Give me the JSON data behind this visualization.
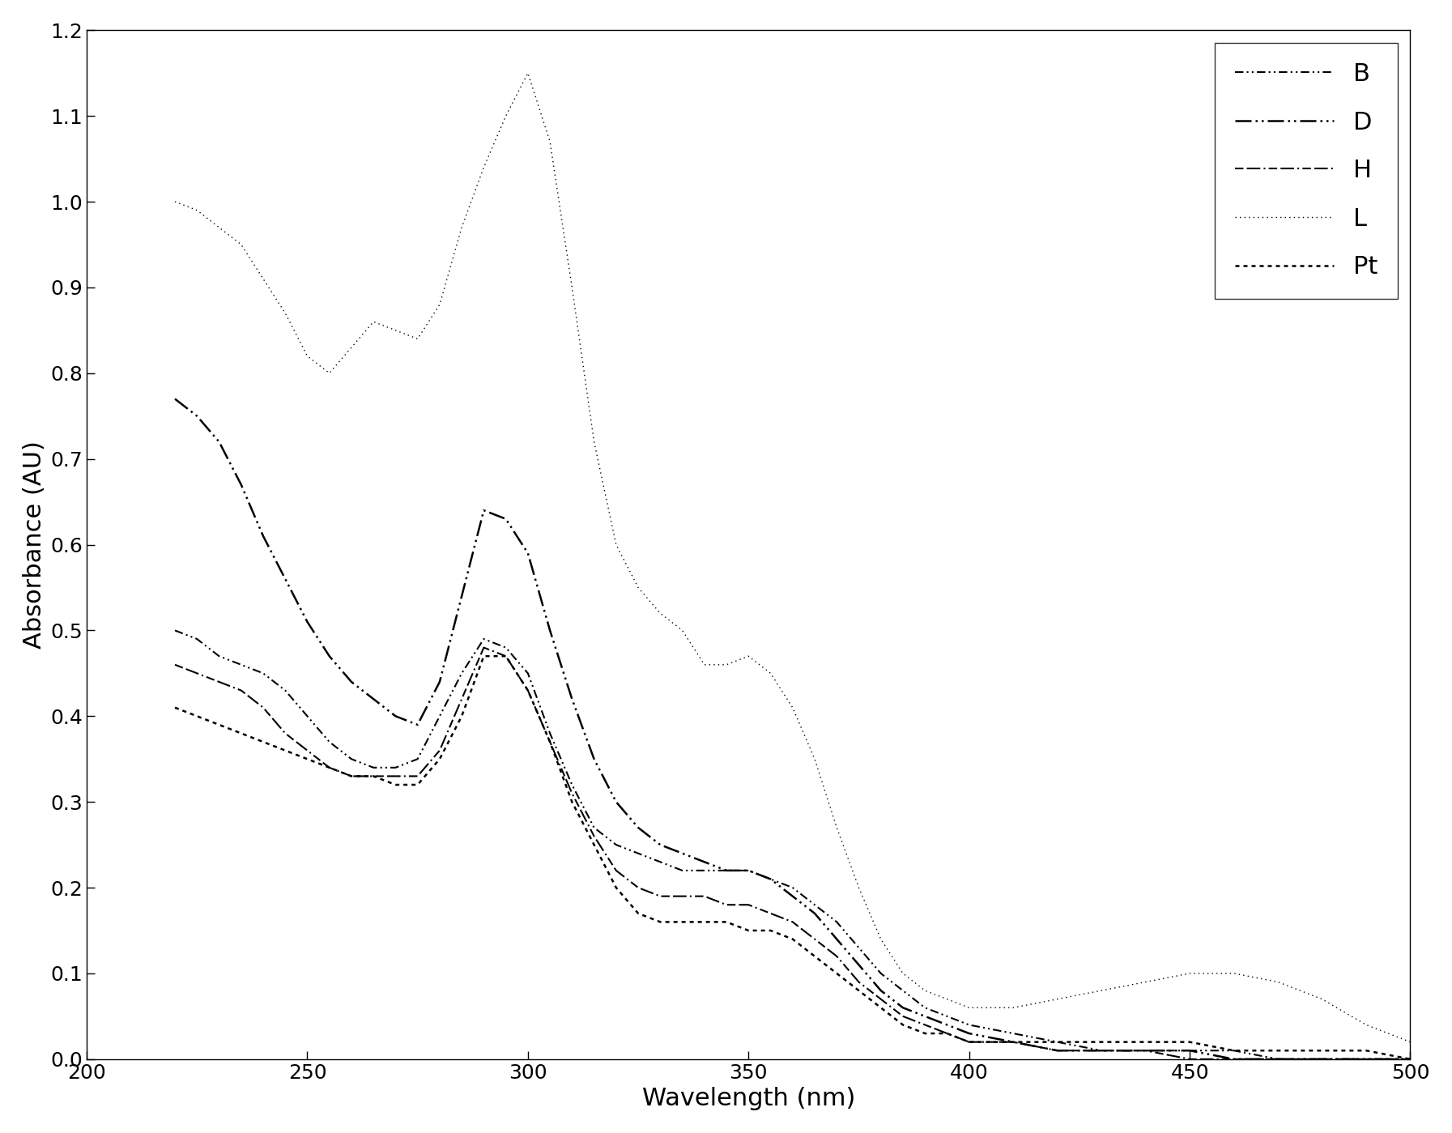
{
  "title": "",
  "xlabel": "Wavelength (nm)",
  "ylabel": "Absorbance (AU)",
  "xlim": [
    200,
    500
  ],
  "ylim": [
    0,
    1.2
  ],
  "xticks": [
    200,
    250,
    300,
    350,
    400,
    450,
    500
  ],
  "yticks": [
    0.0,
    0.1,
    0.2,
    0.3,
    0.4,
    0.5,
    0.6,
    0.7,
    0.8,
    0.9,
    1.0,
    1.1,
    1.2
  ],
  "background_color": "#ffffff",
  "line_color": "#000000",
  "series": [
    {
      "label": "B",
      "x": [
        220,
        225,
        230,
        235,
        240,
        245,
        250,
        255,
        260,
        265,
        270,
        275,
        280,
        285,
        290,
        295,
        300,
        305,
        310,
        315,
        320,
        325,
        330,
        335,
        340,
        345,
        350,
        355,
        360,
        365,
        370,
        375,
        380,
        385,
        390,
        395,
        400,
        410,
        420,
        430,
        440,
        450,
        460,
        470,
        480,
        490,
        500
      ],
      "y": [
        0.5,
        0.49,
        0.47,
        0.46,
        0.45,
        0.43,
        0.4,
        0.37,
        0.35,
        0.34,
        0.34,
        0.35,
        0.4,
        0.45,
        0.49,
        0.48,
        0.45,
        0.38,
        0.32,
        0.27,
        0.25,
        0.24,
        0.23,
        0.22,
        0.22,
        0.22,
        0.22,
        0.21,
        0.2,
        0.18,
        0.16,
        0.13,
        0.1,
        0.08,
        0.06,
        0.05,
        0.04,
        0.03,
        0.02,
        0.01,
        0.01,
        0.01,
        0.01,
        0.0,
        0.0,
        0.0,
        0.0
      ]
    },
    {
      "label": "D",
      "x": [
        220,
        225,
        230,
        235,
        240,
        245,
        250,
        255,
        260,
        265,
        270,
        275,
        280,
        285,
        290,
        295,
        300,
        305,
        310,
        315,
        320,
        325,
        330,
        335,
        340,
        345,
        350,
        355,
        360,
        365,
        370,
        375,
        380,
        385,
        390,
        395,
        400,
        410,
        420,
        430,
        440,
        450,
        460,
        470,
        480,
        490,
        500
      ],
      "y": [
        0.77,
        0.75,
        0.72,
        0.67,
        0.61,
        0.56,
        0.51,
        0.47,
        0.44,
        0.42,
        0.4,
        0.39,
        0.44,
        0.54,
        0.64,
        0.63,
        0.59,
        0.5,
        0.42,
        0.35,
        0.3,
        0.27,
        0.25,
        0.24,
        0.23,
        0.22,
        0.22,
        0.21,
        0.19,
        0.17,
        0.14,
        0.11,
        0.08,
        0.06,
        0.05,
        0.04,
        0.03,
        0.02,
        0.01,
        0.01,
        0.01,
        0.01,
        0.0,
        0.0,
        0.0,
        0.0,
        0.0
      ]
    },
    {
      "label": "H",
      "x": [
        220,
        225,
        230,
        235,
        240,
        245,
        250,
        255,
        260,
        265,
        270,
        275,
        280,
        285,
        290,
        295,
        300,
        305,
        310,
        315,
        320,
        325,
        330,
        335,
        340,
        345,
        350,
        355,
        360,
        365,
        370,
        375,
        380,
        385,
        390,
        395,
        400,
        410,
        420,
        430,
        440,
        450,
        460,
        470,
        480,
        490,
        500
      ],
      "y": [
        0.46,
        0.45,
        0.44,
        0.43,
        0.41,
        0.38,
        0.36,
        0.34,
        0.33,
        0.33,
        0.33,
        0.33,
        0.36,
        0.42,
        0.48,
        0.47,
        0.43,
        0.37,
        0.31,
        0.26,
        0.22,
        0.2,
        0.19,
        0.19,
        0.19,
        0.18,
        0.18,
        0.17,
        0.16,
        0.14,
        0.12,
        0.09,
        0.07,
        0.05,
        0.04,
        0.03,
        0.02,
        0.02,
        0.01,
        0.01,
        0.01,
        0.0,
        0.0,
        0.0,
        0.0,
        0.0,
        0.0
      ]
    },
    {
      "label": "L",
      "x": [
        220,
        225,
        230,
        235,
        240,
        245,
        250,
        255,
        260,
        265,
        270,
        275,
        280,
        285,
        290,
        295,
        300,
        305,
        310,
        315,
        320,
        325,
        330,
        335,
        340,
        345,
        350,
        355,
        360,
        365,
        370,
        375,
        380,
        385,
        390,
        395,
        400,
        410,
        420,
        430,
        440,
        450,
        460,
        470,
        480,
        490,
        500
      ],
      "y": [
        1.0,
        0.99,
        0.97,
        0.95,
        0.91,
        0.87,
        0.82,
        0.8,
        0.83,
        0.86,
        0.85,
        0.84,
        0.88,
        0.97,
        1.04,
        1.1,
        1.15,
        1.07,
        0.9,
        0.72,
        0.6,
        0.55,
        0.52,
        0.5,
        0.46,
        0.46,
        0.47,
        0.45,
        0.41,
        0.35,
        0.27,
        0.2,
        0.14,
        0.1,
        0.08,
        0.07,
        0.06,
        0.06,
        0.07,
        0.08,
        0.09,
        0.1,
        0.1,
        0.09,
        0.07,
        0.04,
        0.02
      ]
    },
    {
      "label": "Pt",
      "x": [
        220,
        225,
        230,
        235,
        240,
        245,
        250,
        255,
        260,
        265,
        270,
        275,
        280,
        285,
        290,
        295,
        300,
        305,
        310,
        315,
        320,
        325,
        330,
        335,
        340,
        345,
        350,
        355,
        360,
        365,
        370,
        375,
        380,
        385,
        390,
        395,
        400,
        410,
        420,
        430,
        440,
        450,
        460,
        470,
        480,
        490,
        500
      ],
      "y": [
        0.41,
        0.4,
        0.39,
        0.38,
        0.37,
        0.36,
        0.35,
        0.34,
        0.33,
        0.33,
        0.32,
        0.32,
        0.35,
        0.4,
        0.47,
        0.47,
        0.43,
        0.37,
        0.3,
        0.25,
        0.2,
        0.17,
        0.16,
        0.16,
        0.16,
        0.16,
        0.15,
        0.15,
        0.14,
        0.12,
        0.1,
        0.08,
        0.06,
        0.04,
        0.03,
        0.03,
        0.02,
        0.02,
        0.02,
        0.02,
        0.02,
        0.02,
        0.01,
        0.01,
        0.01,
        0.01,
        0.0
      ]
    }
  ],
  "legend_loc": "upper right",
  "legend_fontsize": 22,
  "tick_fontsize": 18,
  "label_fontsize": 22,
  "figwidth": 17.93,
  "figheight": 13.99,
  "dpi": 100
}
